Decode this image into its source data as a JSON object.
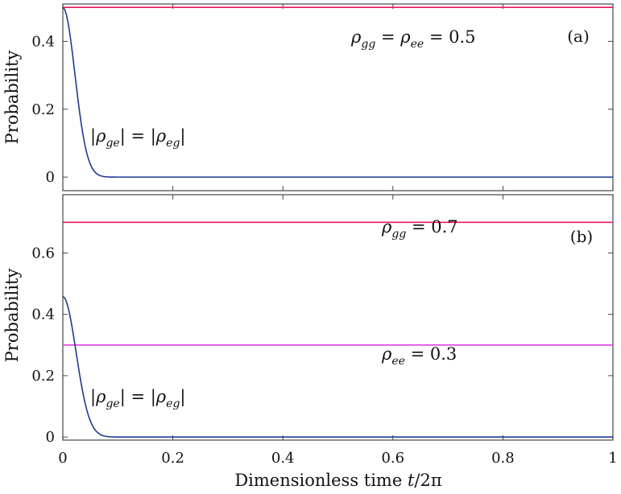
{
  "chart_data": [
    {
      "type": "line",
      "panel_label": "(a)",
      "ylabel": "Probability",
      "xlabel": "",
      "xlim": [
        0,
        1
      ],
      "ylim": [
        -0.04,
        0.51
      ],
      "yticks": [
        0,
        0.2,
        0.4
      ],
      "ytick_labels": [
        "0",
        "0.2",
        "0.4"
      ],
      "xticks": [
        0,
        0.2,
        0.4,
        0.6,
        0.8,
        1
      ],
      "series": [
        {
          "name": "rho_gg = rho_ee",
          "color": "#e8195a",
          "kind": "constant",
          "value": 0.5
        },
        {
          "name": "|rho_ge| = |rho_eg|",
          "color": "#1f3a8f",
          "kind": "gaussian_decay",
          "amplitude": 0.5,
          "decay": 0.022
        }
      ],
      "annotations": {
        "top": {
          "lhs1": "ρ",
          "sub1": "gg",
          "eq1": " = ",
          "lhs2": "ρ",
          "sub2": "ee",
          "rhs": " = 0.5"
        },
        "curve": {
          "bar": "|",
          "lhs": "ρ",
          "sub1": "ge",
          "eq": "| = |",
          "rhs": "ρ",
          "sub2": "eg",
          "end": "|"
        }
      }
    },
    {
      "type": "line",
      "panel_label": "(b)",
      "ylabel": "Probability",
      "xlabel": "Dimensionless time t/2π",
      "xlim": [
        0,
        1
      ],
      "ylim": [
        -0.01,
        0.79
      ],
      "yticks": [
        0,
        0.2,
        0.4,
        0.6
      ],
      "ytick_labels": [
        "0",
        "0.2",
        "0.4",
        "0.6"
      ],
      "xticks": [
        0,
        0.2,
        0.4,
        0.6,
        0.8,
        1
      ],
      "xtick_labels": [
        "0",
        "0.2",
        "0.4",
        "0.6",
        "0.8",
        "1"
      ],
      "series": [
        {
          "name": "rho_gg",
          "color": "#e8195a",
          "kind": "constant",
          "value": 0.7
        },
        {
          "name": "rho_ee",
          "color": "#e040e0",
          "kind": "constant",
          "value": 0.3
        },
        {
          "name": "|rho_ge| = |rho_eg|",
          "color": "#1f3a8f",
          "kind": "gaussian_decay",
          "amplitude": 0.458,
          "decay": 0.024
        }
      ],
      "annotations": {
        "gg": {
          "lhs": "ρ",
          "sub": "gg",
          "rhs": " = 0.7"
        },
        "ee": {
          "lhs": "ρ",
          "sub": "ee",
          "rhs": " = 0.3"
        },
        "curve": {
          "bar": "|",
          "lhs": "ρ",
          "sub1": "ge",
          "eq": "| = |",
          "rhs": "ρ",
          "sub2": "eg",
          "end": "|"
        }
      }
    }
  ],
  "xlabel_parts": {
    "text": "Dimensionless time ",
    "var": "t",
    "rest": "/2π"
  }
}
